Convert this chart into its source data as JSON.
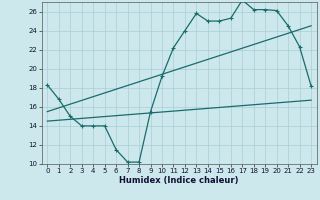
{
  "xlabel": "Humidex (Indice chaleur)",
  "bg_color": "#cce8ec",
  "grid_color": "#aacdd4",
  "line_color": "#1a6b6b",
  "xlim": [
    -0.5,
    23.5
  ],
  "ylim": [
    10,
    27
  ],
  "xticks": [
    0,
    1,
    2,
    3,
    4,
    5,
    6,
    7,
    8,
    9,
    10,
    11,
    12,
    13,
    14,
    15,
    16,
    17,
    18,
    19,
    20,
    21,
    22,
    23
  ],
  "yticks": [
    10,
    12,
    14,
    16,
    18,
    20,
    22,
    24,
    26
  ],
  "line1_x": [
    0,
    1,
    2,
    3,
    4,
    5,
    6,
    7,
    8,
    9,
    10,
    11,
    12,
    13,
    14,
    15,
    16,
    17,
    18,
    19,
    20,
    21,
    22,
    23
  ],
  "line1_y": [
    18.3,
    16.8,
    15.0,
    14.0,
    14.0,
    14.0,
    11.5,
    10.2,
    10.2,
    15.5,
    19.2,
    22.2,
    24.0,
    25.8,
    25.0,
    25.0,
    25.3,
    27.2,
    26.2,
    26.2,
    26.1,
    24.5,
    22.3,
    18.2
  ],
  "line2_x": [
    0,
    23
  ],
  "line2_y": [
    15.5,
    24.5
  ],
  "line3_x": [
    0,
    23
  ],
  "line3_y": [
    14.5,
    16.7
  ]
}
